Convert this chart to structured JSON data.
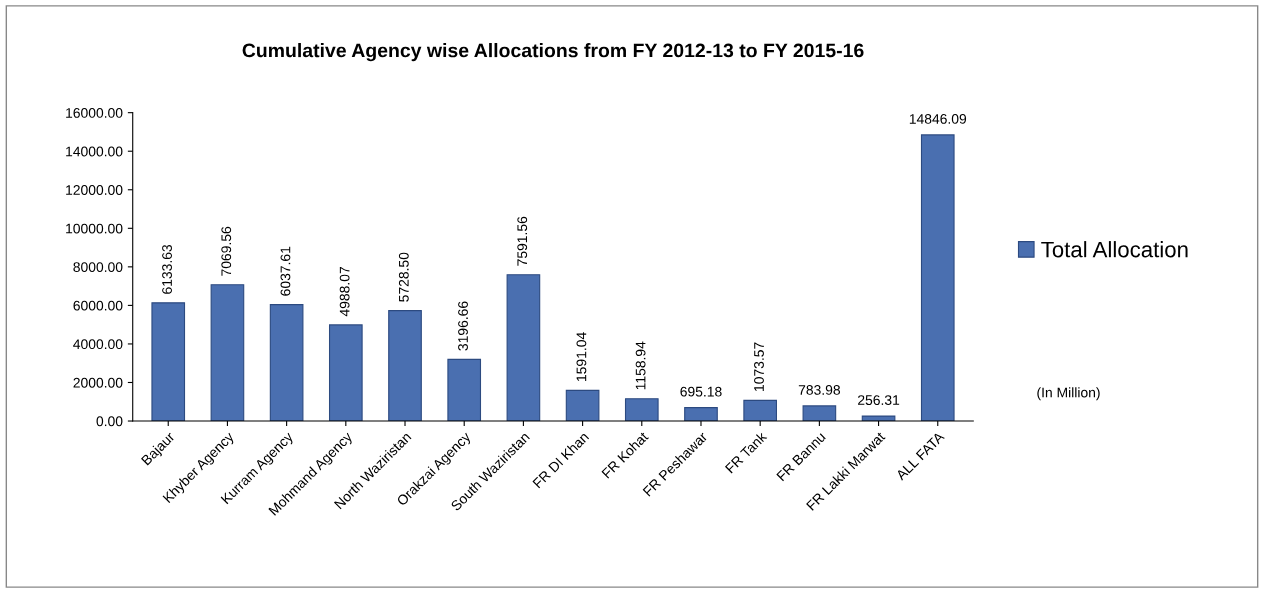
{
  "chart_data": {
    "type": "bar",
    "title": "Cumulative Agency wise Allocations from FY 2012-13 to FY 2015-16",
    "categories": [
      "Bajaur",
      "Khyber Agency",
      "Kurram Agency",
      "Mohmand Agency",
      "North Waziristan",
      "Orakzai Agency",
      "South Waziristan",
      "FR DI Khan",
      "FR Kohat",
      "FR Peshawar",
      "FR Tank",
      "FR Bannu",
      "FR Lakki Marwat",
      "ALL FATA"
    ],
    "series": [
      {
        "name": "Total Allocation",
        "color": "#4a6fb0",
        "values": [
          6133.63,
          7069.56,
          6037.61,
          4988.07,
          5728.5,
          3196.66,
          7591.56,
          1591.04,
          1158.94,
          695.18,
          1073.57,
          783.98,
          256.31,
          14846.09
        ],
        "value_labels": [
          "6133.63",
          "7069.56",
          "6037.61",
          "4988.07",
          "5728.50",
          "3196.66",
          "7591.56",
          "1591.04",
          "1158.94",
          "695.18",
          "1073.57",
          "783.98",
          "256.31",
          "14846.09"
        ]
      }
    ],
    "ylim": [
      0,
      16000
    ],
    "yticks": [
      {
        "value": 0,
        "label": "0.00"
      },
      {
        "value": 2000,
        "label": "2000.00"
      },
      {
        "value": 4000,
        "label": "4000.00"
      },
      {
        "value": 6000,
        "label": "6000.00"
      },
      {
        "value": 8000,
        "label": "8000.00"
      },
      {
        "value": 10000,
        "label": "10000.00"
      },
      {
        "value": 12000,
        "label": "12000.00"
      },
      {
        "value": 14000,
        "label": "14000.00"
      },
      {
        "value": 16000,
        "label": "16000.00"
      }
    ],
    "legend": "right",
    "grid": false,
    "annotations": [
      "(In Million)"
    ]
  }
}
